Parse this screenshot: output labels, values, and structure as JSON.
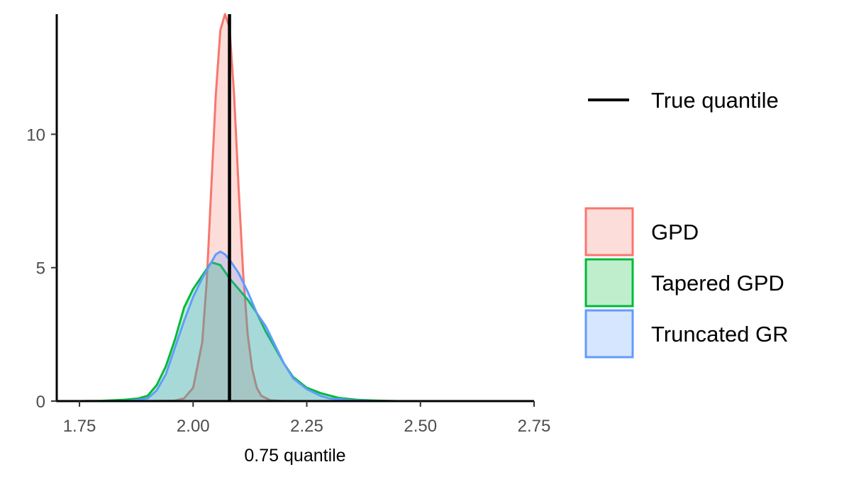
{
  "chart_data": {
    "type": "area",
    "xlabel": "0.75 quantile",
    "ylabel": "",
    "xlim": [
      1.7,
      2.75
    ],
    "ylim": [
      0,
      14.5
    ],
    "x_ticks": [
      1.75,
      2.0,
      2.25,
      2.5,
      2.75
    ],
    "x_tick_labels": [
      "1.75",
      "2.00",
      "2.25",
      "2.50",
      "2.75"
    ],
    "y_ticks": [
      0,
      5,
      10
    ],
    "y_tick_labels": [
      "0",
      "5",
      "10"
    ],
    "grid": false,
    "legend_position": "right",
    "reference_line": {
      "name": "True quantile",
      "x": 2.08,
      "color": "#000000"
    },
    "series": [
      {
        "name": "GPD",
        "color": "#F8766D",
        "fill": "#F8766D",
        "points": [
          [
            1.9,
            0
          ],
          [
            1.96,
            0.02
          ],
          [
            1.98,
            0.1
          ],
          [
            2.0,
            0.5
          ],
          [
            2.02,
            2.2
          ],
          [
            2.03,
            4.5
          ],
          [
            2.04,
            8.0
          ],
          [
            2.05,
            11.5
          ],
          [
            2.06,
            13.9
          ],
          [
            2.07,
            14.5
          ],
          [
            2.08,
            14.0
          ],
          [
            2.09,
            11.5
          ],
          [
            2.1,
            8.0
          ],
          [
            2.11,
            4.8
          ],
          [
            2.12,
            2.5
          ],
          [
            2.13,
            1.2
          ],
          [
            2.14,
            0.5
          ],
          [
            2.15,
            0.2
          ],
          [
            2.17,
            0.03
          ],
          [
            2.2,
            0
          ]
        ]
      },
      {
        "name": "Tapered GPD",
        "color": "#00BA38",
        "fill": "#00BA38",
        "points": [
          [
            1.75,
            0
          ],
          [
            1.8,
            0.01
          ],
          [
            1.85,
            0.05
          ],
          [
            1.88,
            0.1
          ],
          [
            1.9,
            0.2
          ],
          [
            1.92,
            0.6
          ],
          [
            1.94,
            1.3
          ],
          [
            1.96,
            2.3
          ],
          [
            1.98,
            3.5
          ],
          [
            2.0,
            4.2
          ],
          [
            2.02,
            4.7
          ],
          [
            2.04,
            5.2
          ],
          [
            2.06,
            5.1
          ],
          [
            2.08,
            4.6
          ],
          [
            2.1,
            4.2
          ],
          [
            2.12,
            3.8
          ],
          [
            2.14,
            3.3
          ],
          [
            2.16,
            2.6
          ],
          [
            2.18,
            2.0
          ],
          [
            2.2,
            1.4
          ],
          [
            2.22,
            0.9
          ],
          [
            2.25,
            0.5
          ],
          [
            2.28,
            0.3
          ],
          [
            2.32,
            0.12
          ],
          [
            2.36,
            0.05
          ],
          [
            2.4,
            0.02
          ],
          [
            2.45,
            0
          ]
        ]
      },
      {
        "name": "Truncated GR",
        "color": "#619CFF",
        "fill": "#619CFF",
        "points": [
          [
            1.85,
            0
          ],
          [
            1.88,
            0.05
          ],
          [
            1.9,
            0.1
          ],
          [
            1.92,
            0.4
          ],
          [
            1.94,
            1.0
          ],
          [
            1.96,
            2.0
          ],
          [
            1.98,
            3.0
          ],
          [
            2.0,
            3.9
          ],
          [
            2.02,
            4.6
          ],
          [
            2.04,
            5.2
          ],
          [
            2.05,
            5.5
          ],
          [
            2.06,
            5.6
          ],
          [
            2.07,
            5.5
          ],
          [
            2.08,
            5.3
          ],
          [
            2.1,
            4.8
          ],
          [
            2.12,
            4.1
          ],
          [
            2.14,
            3.3
          ],
          [
            2.16,
            2.8
          ],
          [
            2.18,
            2.1
          ],
          [
            2.2,
            1.4
          ],
          [
            2.22,
            0.85
          ],
          [
            2.25,
            0.45
          ],
          [
            2.28,
            0.2
          ],
          [
            2.3,
            0.1
          ],
          [
            2.35,
            0.03
          ],
          [
            2.4,
            0
          ]
        ]
      }
    ]
  }
}
